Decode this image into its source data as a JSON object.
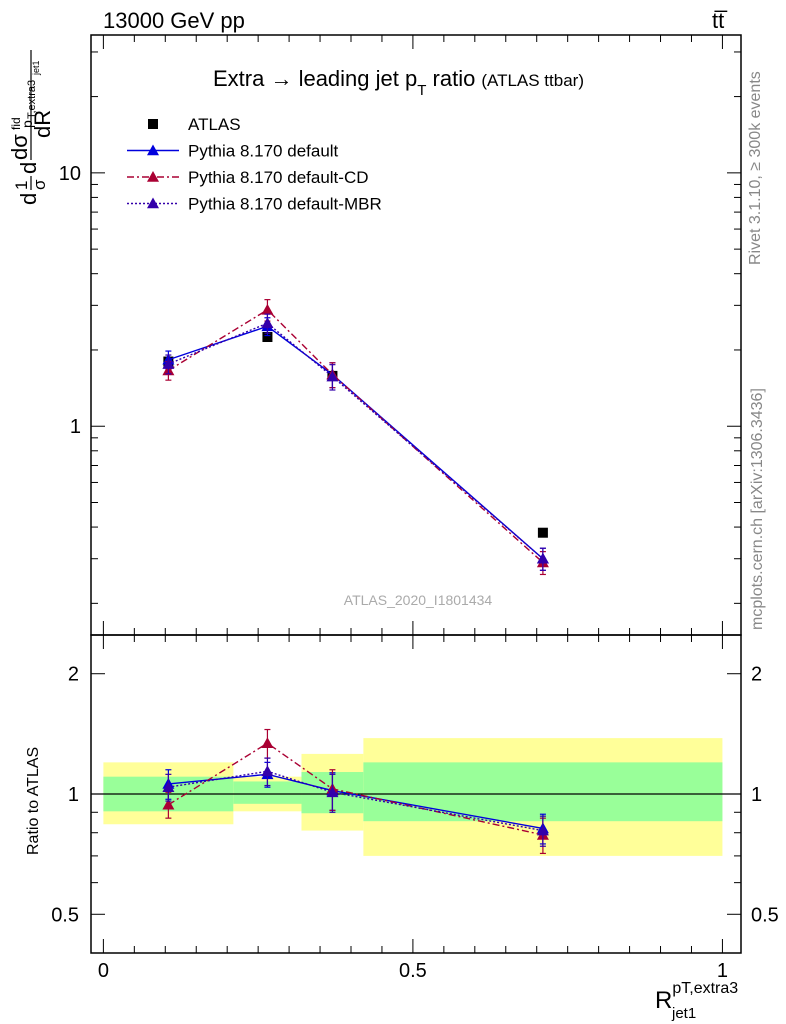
{
  "header": {
    "left": "13000 GeV pp",
    "right": "tt̅"
  },
  "side_labels": {
    "rivet": "Rivet 3.1.10, ≥ 300k events",
    "mcplots": "mcplots.cern.ch [arXiv:1306.3436]"
  },
  "colors": {
    "atlas": "#000000",
    "default": "#0000dd",
    "default_cd": "#aa0033",
    "default_mbr": "#3300aa",
    "band_stat": "#99ff99",
    "band_total": "#ffff99"
  },
  "chart_data": [
    {
      "type": "line",
      "title_main": "Extra → leading jet p",
      "title_sub": "T",
      "title_tail": " ratio",
      "title_note": "(ATLAS ttbar)",
      "watermark": "ATLAS_2020_I1801434",
      "ylabel": "dσ/dR (normalised)",
      "yscale": "log",
      "xlim": [
        -0.02,
        1.03
      ],
      "ylim": [
        0.15,
        35
      ],
      "ytick_labels": [
        {
          "v": 1,
          "label": "1"
        },
        {
          "v": 10,
          "label": "10"
        }
      ],
      "series": [
        {
          "name": "ATLAS",
          "marker": "square",
          "x": [
            0.105,
            0.265,
            0.37,
            0.71
          ],
          "y": [
            1.8,
            2.25,
            1.58,
            0.38
          ]
        },
        {
          "name": "Pythia 8.170 default",
          "marker": "triangle",
          "line": "solid",
          "x": [
            0.105,
            0.265,
            0.37,
            0.71
          ],
          "y": [
            1.83,
            2.48,
            1.6,
            0.3
          ],
          "yerr": [
            0.15,
            0.2,
            0.18,
            0.03
          ]
        },
        {
          "name": "Pythia 8.170 default-CD",
          "marker": "triangle",
          "line": "dashdot",
          "x": [
            0.105,
            0.265,
            0.37,
            0.71
          ],
          "y": [
            1.66,
            2.88,
            1.6,
            0.29
          ],
          "yerr": [
            0.14,
            0.28,
            0.18,
            0.03
          ]
        },
        {
          "name": "Pythia 8.170 default-MBR",
          "marker": "triangle",
          "line": "dotted",
          "x": [
            0.105,
            0.265,
            0.37,
            0.71
          ],
          "y": [
            1.76,
            2.55,
            1.57,
            0.3
          ],
          "yerr": [
            0.15,
            0.22,
            0.18,
            0.03
          ]
        }
      ]
    },
    {
      "type": "line",
      "ylabel": "Ratio to ATLAS",
      "xlabel_main": "R",
      "xlabel_sup": "pT,extra3",
      "xlabel_sub": "jet1",
      "yscale": "log",
      "xlim": [
        -0.02,
        1.03
      ],
      "ylim": [
        0.4,
        2.5
      ],
      "ytick_labels": [
        {
          "v": 0.5,
          "label": "0.5"
        },
        {
          "v": 1,
          "label": "1"
        },
        {
          "v": 2,
          "label": "2"
        }
      ],
      "xtick_labels": [
        {
          "v": 0,
          "label": "0"
        },
        {
          "v": 0.5,
          "label": "0.5"
        },
        {
          "v": 1,
          "label": "1"
        }
      ],
      "bands": [
        {
          "x0": 0.0,
          "x1": 0.21,
          "stat": [
            0.905,
            1.105
          ],
          "total": [
            0.84,
            1.2
          ]
        },
        {
          "x0": 0.21,
          "x1": 0.32,
          "stat": [
            0.945,
            1.075
          ],
          "total": [
            0.905,
            1.105
          ]
        },
        {
          "x0": 0.32,
          "x1": 0.42,
          "stat": [
            0.895,
            1.135
          ],
          "total": [
            0.81,
            1.26
          ]
        },
        {
          "x0": 0.42,
          "x1": 1.0,
          "stat": [
            0.855,
            1.2
          ],
          "total": [
            0.7,
            1.38
          ]
        }
      ],
      "series": [
        {
          "name": "Pythia 8.170 default",
          "x": [
            0.105,
            0.265,
            0.37,
            0.71
          ],
          "y": [
            1.06,
            1.12,
            1.02,
            0.82
          ],
          "yerr": [
            0.09,
            0.08,
            0.11,
            0.07
          ]
        },
        {
          "name": "Pythia 8.170 default-CD",
          "x": [
            0.105,
            0.265,
            0.37,
            0.71
          ],
          "y": [
            0.94,
            1.34,
            1.03,
            0.79
          ],
          "yerr": [
            0.07,
            0.11,
            0.12,
            0.08
          ]
        },
        {
          "name": "Pythia 8.170 default-MBR",
          "x": [
            0.105,
            0.265,
            0.37,
            0.71
          ],
          "y": [
            1.04,
            1.14,
            1.01,
            0.81
          ],
          "yerr": [
            0.08,
            0.09,
            0.11,
            0.07
          ]
        }
      ]
    }
  ]
}
